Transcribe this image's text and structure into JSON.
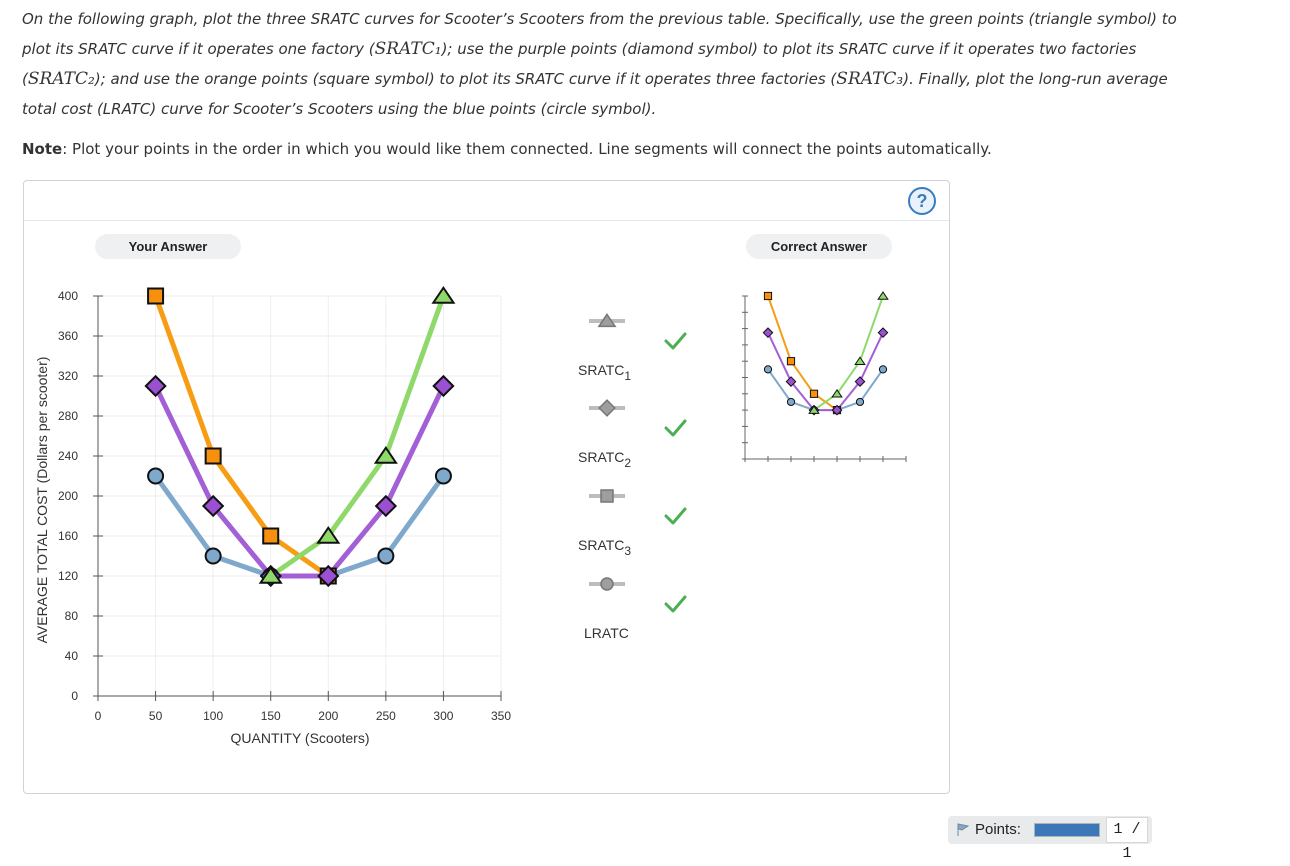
{
  "instructions": {
    "p1": "On the following graph, plot the three SRATC curves for Scooter’s Scooters from the previous table. Specifically, use the green points (triangle symbol) to plot its SRATC curve if it operates one factory (",
    "m1": "SRATC₁",
    "p2": "); use the purple points (diamond symbol) to plot its SRATC curve if it operates two factories (",
    "m2": "SRATC₂",
    "p3": "); and use the orange points (square symbol) to plot its SRATC curve if it operates three factories (",
    "m3": "SRATC₃",
    "p4": "). Finally, plot the long-run average total cost (LRATC) curve for Scooter’s Scooters using the blue points (circle symbol)."
  },
  "note": {
    "label": "Note",
    "text": ": Plot your points in the order in which you would like them connected. Line segments will connect the points automatically."
  },
  "panel": {
    "your_answer_label": "Your Answer",
    "correct_answer_label": "Correct Answer",
    "help_symbol": "?"
  },
  "legend": {
    "items": [
      {
        "name": "SRATC",
        "sub": "1",
        "shape": "triangle",
        "status": "correct"
      },
      {
        "name": "SRATC",
        "sub": "2",
        "shape": "diamond",
        "status": "correct"
      },
      {
        "name": "SRATC",
        "sub": "3",
        "shape": "square",
        "status": "correct"
      },
      {
        "name": "LRATC",
        "sub": "",
        "shape": "circle",
        "status": "correct"
      }
    ],
    "check_color": "#4caf50",
    "marker_color": "#9e9e9e"
  },
  "points": {
    "label": "Points:",
    "value": "1 / 1",
    "progress": 1.0
  },
  "chart_data": {
    "type": "line",
    "xlabel": "QUANTITY (Scooters)",
    "ylabel": "AVERAGE TOTAL COST (Dollars per scooter)",
    "xlim": [
      0,
      350
    ],
    "ylim": [
      0,
      400
    ],
    "xticks": [
      0,
      50,
      100,
      150,
      200,
      250,
      300,
      350
    ],
    "yticks": [
      0,
      40,
      80,
      120,
      160,
      200,
      240,
      280,
      320,
      360,
      400
    ],
    "series": [
      {
        "name": "SRATC1",
        "marker": "triangle",
        "color": "#8fd96a",
        "points": [
          [
            150,
            120
          ],
          [
            200,
            160
          ],
          [
            250,
            240
          ],
          [
            300,
            400
          ]
        ]
      },
      {
        "name": "SRATC2",
        "marker": "diamond",
        "color": "#a35fd6",
        "points": [
          [
            50,
            310
          ],
          [
            100,
            190
          ],
          [
            150,
            120
          ],
          [
            200,
            120
          ],
          [
            250,
            190
          ],
          [
            300,
            310
          ]
        ]
      },
      {
        "name": "SRATC3",
        "marker": "square",
        "color": "#f79d14",
        "points": [
          [
            50,
            400
          ],
          [
            100,
            240
          ],
          [
            150,
            160
          ],
          [
            200,
            120
          ]
        ]
      },
      {
        "name": "LRATC",
        "marker": "circle",
        "color": "#7ea8cc",
        "points": [
          [
            50,
            220
          ],
          [
            100,
            140
          ],
          [
            150,
            120
          ],
          [
            200,
            120
          ],
          [
            250,
            140
          ],
          [
            300,
            220
          ]
        ]
      }
    ],
    "marker_fills": {
      "triangle": "#8fd96a",
      "diamond": "#9b4fd1",
      "square": "#f7900f",
      "circle": "#7ea8cc"
    }
  }
}
